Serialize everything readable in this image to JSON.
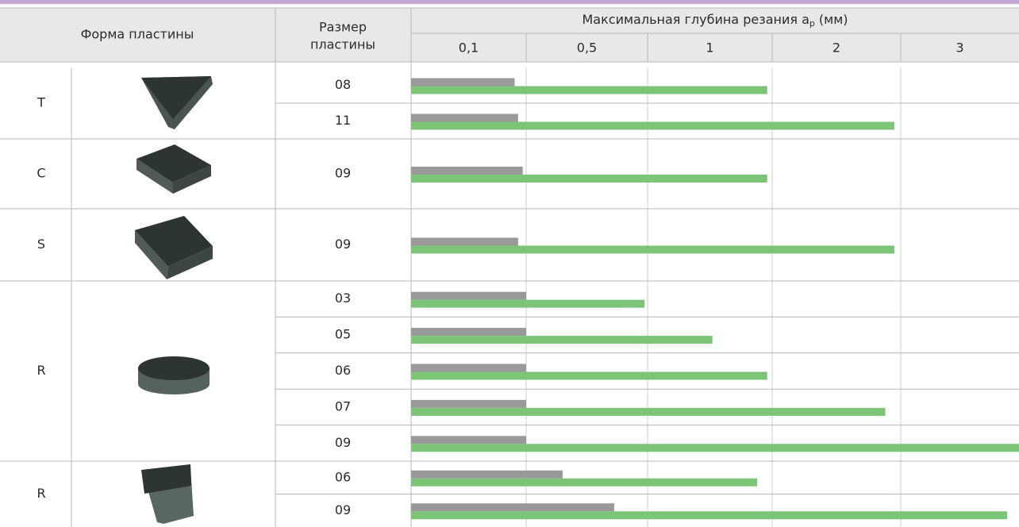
{
  "header": {
    "shape": "Форма пластины",
    "size_line1": "Размер",
    "size_line2": "пластины",
    "depth_title": "Максимальная глубина резания a",
    "depth_subscript": "p",
    "depth_unit": "(мм)"
  },
  "chart_data": {
    "type": "bar",
    "orientation": "horizontal",
    "xlim": [
      0,
      3
    ],
    "xticks": [
      {
        "value": 0.1,
        "label": "0,1"
      },
      {
        "value": 0.5,
        "label": "0,5"
      },
      {
        "value": 1,
        "label": "1"
      },
      {
        "value": 2,
        "label": "2"
      },
      {
        "value": 3,
        "label": "3"
      }
    ],
    "groups": [
      {
        "label": "T",
        "categories": [
          "08",
          "11"
        ]
      },
      {
        "label": "C",
        "categories": [
          "09"
        ]
      },
      {
        "label": "S",
        "categories": [
          "09"
        ]
      },
      {
        "label": "R",
        "categories": [
          "03",
          "05",
          "06",
          "07",
          "09"
        ]
      },
      {
        "label": "R",
        "categories": [
          "06",
          "09"
        ]
      }
    ],
    "series": [
      {
        "color": "#999999",
        "values": [
          0.09,
          0.093,
          0.097,
          0.093,
          0.1,
          0.1,
          0.1,
          0.1,
          0.1,
          0.22,
          0.39
        ]
      },
      {
        "color": "#7cc577",
        "values": [
          0.98,
          1.95,
          0.98,
          1.95,
          0.49,
          0.76,
          0.98,
          1.88,
          3,
          0.94,
          2.9
        ]
      }
    ]
  }
}
